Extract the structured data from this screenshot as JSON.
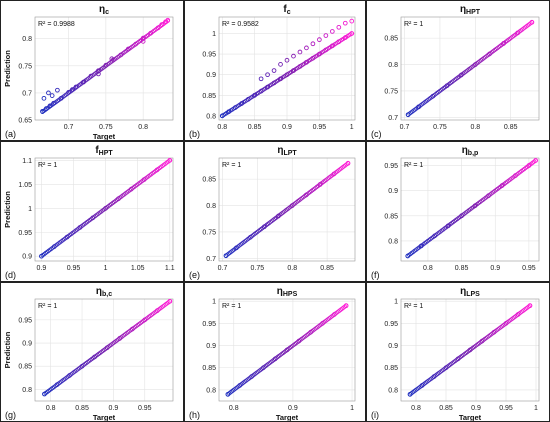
{
  "colors": {
    "low": "#1f2fbf",
    "mid": "#7a1fb0",
    "high": "#ff1bd6",
    "accent": "#2bd64a"
  },
  "chart_data": [
    {
      "id": "a",
      "type": "scatter",
      "panel_label": "(a)",
      "title_main": "η",
      "title_sub": "c",
      "r2": "R² = 0.9988",
      "xlabel": "Target",
      "ylabel": "Prediction",
      "xlim": [
        0.655,
        0.84
      ],
      "ylim": [
        0.65,
        0.84
      ],
      "xticks": [
        0.7,
        0.75,
        0.8
      ],
      "xtick_labels": [
        "0.7",
        "0.75",
        "0.8"
      ],
      "yticks": [
        0.65,
        0.7,
        0.75,
        0.8
      ],
      "ytick_labels": [
        "0.65",
        "0.7",
        "0.75",
        "0.8"
      ],
      "x": [
        0.665,
        0.67,
        0.675,
        0.68,
        0.69,
        0.7,
        0.705,
        0.71,
        0.72,
        0.73,
        0.74,
        0.75,
        0.76,
        0.77,
        0.78,
        0.79,
        0.8,
        0.81,
        0.82,
        0.825,
        0.83,
        0.833,
        0.667,
        0.673,
        0.678,
        0.685,
        0.74,
        0.758,
        0.8
      ],
      "y": [
        0.666,
        0.671,
        0.676,
        0.681,
        0.69,
        0.701,
        0.706,
        0.711,
        0.72,
        0.731,
        0.741,
        0.751,
        0.761,
        0.77,
        0.781,
        0.79,
        0.801,
        0.81,
        0.82,
        0.826,
        0.831,
        0.834,
        0.69,
        0.7,
        0.695,
        0.705,
        0.735,
        0.763,
        0.795
      ]
    },
    {
      "id": "b",
      "type": "scatter",
      "panel_label": "(b)",
      "title_main": "f",
      "title_sub": "c",
      "r2": "R² = 0.9582",
      "xlabel": "",
      "ylabel": "",
      "xlim": [
        0.795,
        1.005
      ],
      "ylim": [
        0.79,
        1.04
      ],
      "xticks": [
        0.8,
        0.85,
        0.9,
        0.95,
        1
      ],
      "xtick_labels": [
        "0.8",
        "0.85",
        "0.9",
        "0.95",
        "1"
      ],
      "yticks": [
        0.8,
        0.85,
        0.9,
        0.95,
        1
      ],
      "ytick_labels": [
        "0.8",
        "0.85",
        "0.9",
        "0.95",
        "1"
      ],
      "x": [
        0.8,
        0.81,
        0.82,
        0.83,
        0.84,
        0.85,
        0.86,
        0.87,
        0.88,
        0.89,
        0.9,
        0.91,
        0.92,
        0.93,
        0.94,
        0.95,
        0.96,
        0.97,
        0.98,
        0.99,
        1.0,
        0.86,
        0.87,
        0.88,
        0.89,
        0.9,
        0.91,
        0.92,
        0.93,
        0.94,
        0.95,
        0.96,
        0.97,
        0.98,
        0.99,
        1.0
      ],
      "y": [
        0.8,
        0.81,
        0.82,
        0.83,
        0.84,
        0.85,
        0.86,
        0.87,
        0.88,
        0.89,
        0.9,
        0.91,
        0.92,
        0.93,
        0.94,
        0.95,
        0.96,
        0.97,
        0.98,
        0.99,
        1.0,
        0.89,
        0.9,
        0.91,
        0.925,
        0.935,
        0.945,
        0.955,
        0.965,
        0.975,
        0.985,
        0.995,
        1.005,
        1.015,
        1.025,
        1.03
      ]
    },
    {
      "id": "c",
      "type": "scatter",
      "panel_label": "(c)",
      "title_main": "η",
      "title_sub": "HPT",
      "r2": "R² = 1",
      "xlabel": "",
      "ylabel": "",
      "xlim": [
        0.695,
        0.89
      ],
      "ylim": [
        0.695,
        0.89
      ],
      "xticks": [
        0.7,
        0.75,
        0.8,
        0.85
      ],
      "xtick_labels": [
        "0.7",
        "0.75",
        "0.8",
        "0.85"
      ],
      "yticks": [
        0.7,
        0.75,
        0.8,
        0.85
      ],
      "ytick_labels": [
        "0.7",
        "0.75",
        "0.8",
        "0.85"
      ],
      "x": [
        0.705,
        0.72,
        0.74,
        0.76,
        0.78,
        0.8,
        0.82,
        0.84,
        0.86,
        0.88
      ],
      "y": [
        0.705,
        0.72,
        0.74,
        0.76,
        0.78,
        0.8,
        0.82,
        0.84,
        0.86,
        0.88
      ]
    },
    {
      "id": "d",
      "type": "scatter",
      "panel_label": "(d)",
      "title_main": "f",
      "title_sub": "HPT",
      "r2": "R² = 1",
      "xlabel": "",
      "ylabel": "Prediction",
      "xlim": [
        0.89,
        1.105
      ],
      "ylim": [
        0.89,
        1.105
      ],
      "xticks": [
        0.9,
        0.95,
        1,
        1.05,
        1.1
      ],
      "xtick_labels": [
        "0.9",
        "0.95",
        "1",
        "1.05",
        "1.1"
      ],
      "yticks": [
        0.9,
        0.95,
        1,
        1.05,
        1.1
      ],
      "ytick_labels": [
        "0.9",
        "0.95",
        "1",
        "1.05",
        "1.1"
      ],
      "x": [
        0.9,
        0.92,
        0.94,
        0.96,
        0.98,
        1.0,
        1.02,
        1.04,
        1.06,
        1.08,
        1.1
      ],
      "y": [
        0.9,
        0.92,
        0.94,
        0.96,
        0.98,
        1.0,
        1.02,
        1.04,
        1.06,
        1.08,
        1.1
      ]
    },
    {
      "id": "e",
      "type": "scatter",
      "panel_label": "(e)",
      "title_main": "η",
      "title_sub": "LPT",
      "r2": "R² = 1",
      "xlabel": "",
      "ylabel": "",
      "xlim": [
        0.695,
        0.89
      ],
      "ylim": [
        0.695,
        0.89
      ],
      "xticks": [
        0.7,
        0.75,
        0.8,
        0.85
      ],
      "xtick_labels": [
        "0.7",
        "0.75",
        "0.8",
        "0.85"
      ],
      "yticks": [
        0.7,
        0.75,
        0.8,
        0.85
      ],
      "ytick_labels": [
        "0.7",
        "0.75",
        "0.8",
        "0.85"
      ],
      "x": [
        0.705,
        0.72,
        0.74,
        0.76,
        0.78,
        0.8,
        0.82,
        0.84,
        0.86,
        0.88
      ],
      "y": [
        0.705,
        0.72,
        0.74,
        0.76,
        0.78,
        0.8,
        0.82,
        0.84,
        0.86,
        0.88
      ]
    },
    {
      "id": "f",
      "type": "scatter",
      "panel_label": "(f)",
      "title_main": "η",
      "title_sub": "b,p",
      "r2": "R² = 1",
      "xlabel": "",
      "ylabel": "",
      "xlim": [
        0.76,
        0.965
      ],
      "ylim": [
        0.76,
        0.965
      ],
      "xticks": [
        0.8,
        0.85,
        0.9,
        0.95
      ],
      "xtick_labels": [
        "0.8",
        "0.85",
        "0.9",
        "0.95"
      ],
      "yticks": [
        0.8,
        0.85,
        0.9,
        0.95
      ],
      "ytick_labels": [
        "0.8",
        "0.85",
        "0.9",
        "0.95"
      ],
      "x": [
        0.77,
        0.79,
        0.81,
        0.83,
        0.85,
        0.87,
        0.89,
        0.91,
        0.93,
        0.95,
        0.96
      ],
      "y": [
        0.77,
        0.79,
        0.81,
        0.83,
        0.85,
        0.87,
        0.89,
        0.91,
        0.93,
        0.95,
        0.96
      ]
    },
    {
      "id": "g",
      "type": "scatter",
      "panel_label": "(g)",
      "title_main": "η",
      "title_sub": "b,c",
      "r2": "R² = 1",
      "xlabel": "Target",
      "ylabel": "Prediction",
      "xlim": [
        0.775,
        0.995
      ],
      "ylim": [
        0.775,
        0.995
      ],
      "xticks": [
        0.8,
        0.85,
        0.9,
        0.95
      ],
      "xtick_labels": [
        "0.8",
        "0.85",
        "0.9",
        "0.95"
      ],
      "yticks": [
        0.8,
        0.85,
        0.9,
        0.95
      ],
      "ytick_labels": [
        "0.8",
        "0.85",
        "0.9",
        "0.95"
      ],
      "x": [
        0.79,
        0.81,
        0.83,
        0.85,
        0.87,
        0.89,
        0.91,
        0.93,
        0.95,
        0.97,
        0.99
      ],
      "y": [
        0.79,
        0.81,
        0.83,
        0.85,
        0.87,
        0.89,
        0.91,
        0.93,
        0.95,
        0.97,
        0.99
      ]
    },
    {
      "id": "h",
      "type": "scatter",
      "panel_label": "(h)",
      "title_main": "η",
      "title_sub": "HPS",
      "r2": "R² = 1",
      "xlabel": "Target",
      "ylabel": "",
      "xlim": [
        0.775,
        1.005
      ],
      "ylim": [
        0.775,
        1.005
      ],
      "xticks": [
        0.8,
        0.9,
        1
      ],
      "xtick_labels": [
        "0.8",
        "0.9",
        "1"
      ],
      "yticks": [
        0.8,
        0.85,
        0.9,
        0.95,
        1
      ],
      "ytick_labels": [
        "0.8",
        "0.85",
        "0.9",
        "0.95",
        "1"
      ],
      "x": [
        0.79,
        0.81,
        0.83,
        0.85,
        0.87,
        0.89,
        0.91,
        0.93,
        0.95,
        0.97,
        0.99
      ],
      "y": [
        0.79,
        0.81,
        0.83,
        0.85,
        0.87,
        0.89,
        0.91,
        0.93,
        0.95,
        0.97,
        0.99
      ]
    },
    {
      "id": "i",
      "type": "scatter",
      "panel_label": "(i)",
      "title_main": "η",
      "title_sub": "LPS",
      "r2": "R² = 1",
      "xlabel": "Target",
      "ylabel": "",
      "xlim": [
        0.775,
        1.005
      ],
      "ylim": [
        0.775,
        1.005
      ],
      "xticks": [
        0.8,
        0.85,
        0.9,
        0.95,
        1
      ],
      "xtick_labels": [
        "0.8",
        "0.85",
        "0.9",
        "0.95",
        "1"
      ],
      "yticks": [
        0.8,
        0.85,
        0.9,
        0.95,
        1
      ],
      "ytick_labels": [
        "0.8",
        "0.85",
        "0.9",
        "0.95",
        "1"
      ],
      "x": [
        0.79,
        0.81,
        0.83,
        0.85,
        0.87,
        0.89,
        0.91,
        0.93,
        0.95,
        0.97,
        0.99
      ],
      "y": [
        0.79,
        0.81,
        0.83,
        0.85,
        0.87,
        0.89,
        0.91,
        0.93,
        0.95,
        0.97,
        0.99
      ]
    }
  ]
}
